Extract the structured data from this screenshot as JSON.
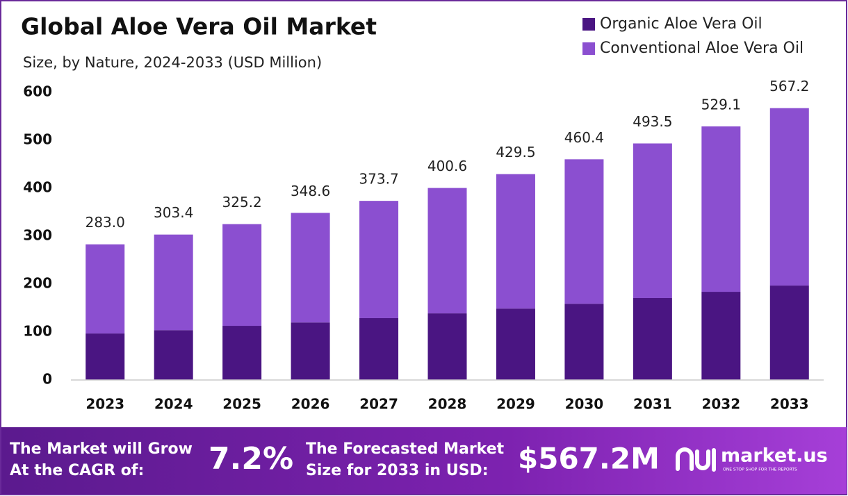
{
  "chart_data": {
    "type": "stacked-bar",
    "title": "Global Aloe Vera Oil Market",
    "subtitle": "Size, by Nature, 2024-2033 (USD Million)",
    "categories": [
      "2023",
      "2024",
      "2025",
      "2026",
      "2027",
      "2028",
      "2029",
      "2030",
      "2031",
      "2032",
      "2033"
    ],
    "series": [
      {
        "name": "Organic Aloe Vera Oil",
        "color": "#4a1582",
        "values": [
          97,
          104,
          113,
          120,
          129,
          139,
          149,
          159,
          171,
          184,
          197
        ]
      },
      {
        "name": "Conventional Aloe Vera Oil",
        "color": "#8b4fd0",
        "values": [
          186,
          199.4,
          212.2,
          228.6,
          244.7,
          261.6,
          280.5,
          301.4,
          322.5,
          345.1,
          370.2
        ]
      }
    ],
    "total_labels": [
      "283.0",
      "303.4",
      "325.2",
      "348.6",
      "373.7",
      "400.6",
      "429.5",
      "460.4",
      "493.5",
      "529.1",
      "567.2"
    ],
    "ylim": [
      0,
      600
    ],
    "yticks": [
      0,
      100,
      200,
      300,
      400,
      500,
      600
    ],
    "grid": false,
    "legend": "top-right"
  },
  "footer": {
    "cagr_text_1": "The Market will Grow",
    "cagr_text_2": "At the CAGR of:",
    "cagr_value": "7.2%",
    "forecast_text_1": "The Forecasted Market",
    "forecast_text_2": "Size for 2033 in USD:",
    "forecast_value": "$567.2M",
    "brand": "market.us",
    "tagline": "ONE STOP SHOP FOR THE REPORTS"
  }
}
